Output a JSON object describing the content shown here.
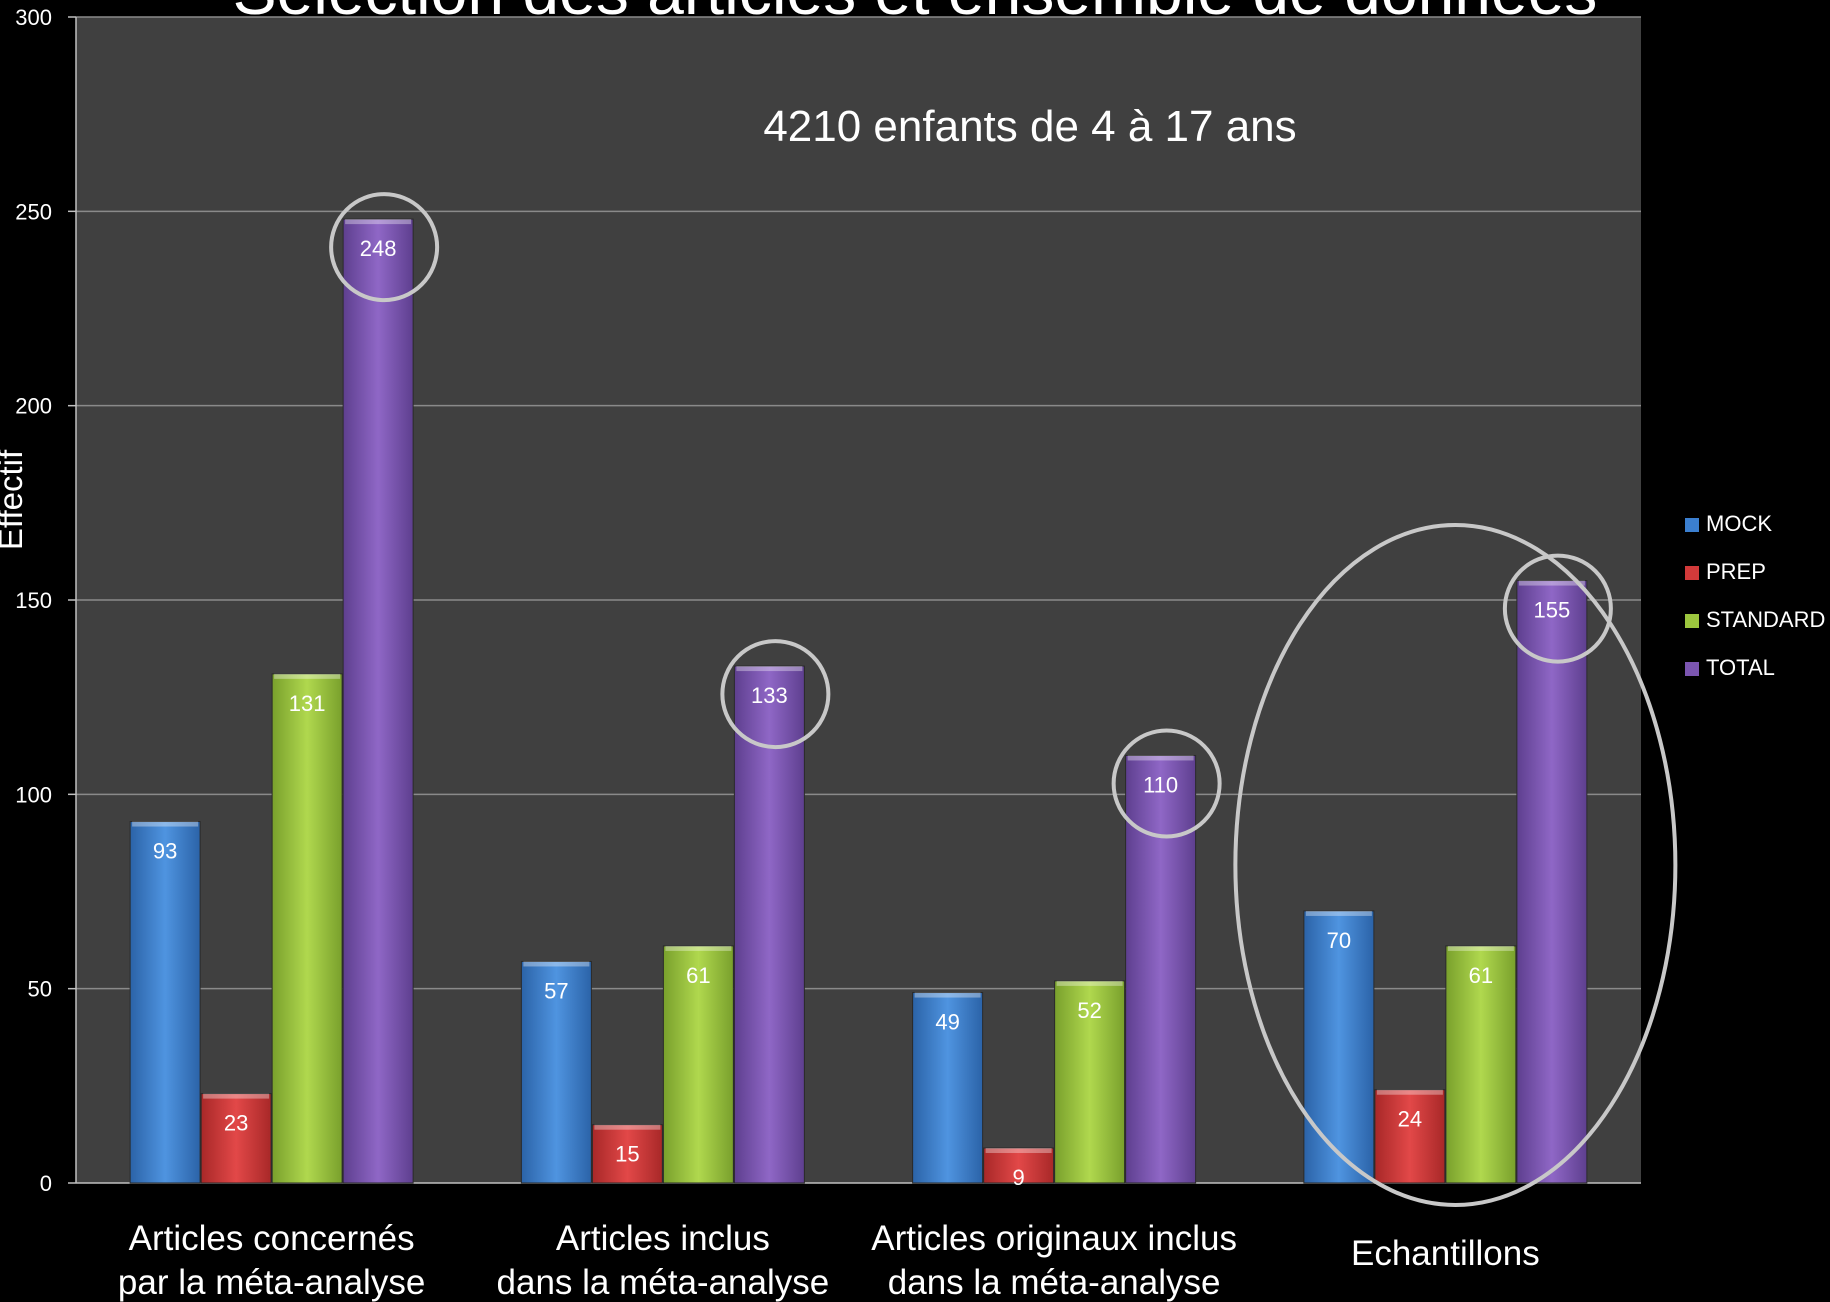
{
  "chart_data": {
    "type": "bar",
    "title": "Sélection des articles et ensemble de données",
    "annotation": "4210 enfants de 4 à 17 ans",
    "ylabel": "Effectif",
    "xlabel": "",
    "ylim": [
      0,
      300
    ],
    "yticks": [
      0,
      50,
      100,
      150,
      200,
      250,
      300
    ],
    "grid": true,
    "legend_position": "right",
    "categories": [
      "Articles concernés par la méta-analyse",
      "Articles inclus dans la méta-analyse",
      "Articles originaux inclus dans la méta-analyse",
      "Echantillons"
    ],
    "series": [
      {
        "name": "MOCK",
        "color": "#3b7fd0",
        "values": [
          93,
          57,
          49,
          70
        ]
      },
      {
        "name": "PREP",
        "color": "#d23a3a",
        "values": [
          23,
          15,
          9,
          24
        ]
      },
      {
        "name": "STANDARD",
        "color": "#9cc63e",
        "values": [
          131,
          61,
          52,
          61
        ]
      },
      {
        "name": "TOTAL",
        "color": "#7b55b0",
        "values": [
          248,
          133,
          110,
          155
        ]
      }
    ],
    "highlights": [
      "TOTAL values circled",
      "Echantillons group circled"
    ],
    "plot_background": "#404040",
    "page_background": "#000000"
  }
}
